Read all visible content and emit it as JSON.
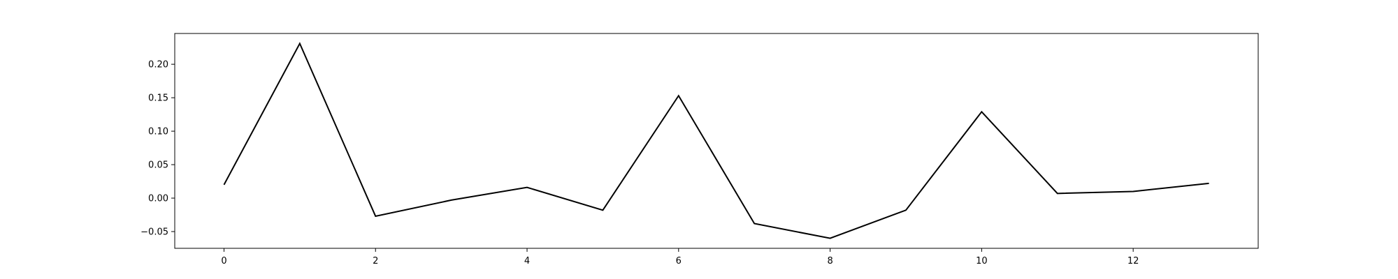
{
  "chart_data": {
    "type": "line",
    "title": "",
    "xlabel": "",
    "ylabel": "",
    "x": [
      0,
      1,
      2,
      3,
      4,
      5,
      6,
      7,
      8,
      9,
      10,
      11,
      12,
      13
    ],
    "series": [
      {
        "values": [
          0.02,
          0.231,
          -0.027,
          -0.003,
          0.016,
          -0.018,
          0.153,
          -0.038,
          -0.06,
          -0.018,
          0.129,
          0.007,
          0.01,
          0.022
        ],
        "color": "#000000"
      }
    ],
    "xlim": [
      -0.65,
      13.65
    ],
    "ylim": [
      -0.075,
      0.246
    ],
    "xticks": [
      0,
      2,
      4,
      6,
      8,
      10,
      12
    ],
    "xtick_labels": [
      "0",
      "2",
      "4",
      "6",
      "8",
      "10",
      "12"
    ],
    "yticks": [
      -0.05,
      0.0,
      0.05,
      0.1,
      0.15,
      0.2
    ],
    "ytick_labels": [
      "−0.05",
      "0.00",
      "0.05",
      "0.10",
      "0.15",
      "0.20"
    ],
    "grid": false,
    "legend": "none"
  }
}
